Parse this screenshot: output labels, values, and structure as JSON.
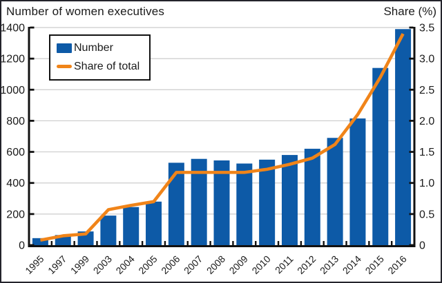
{
  "header": {
    "title": "Number of women executives",
    "right_axis_title": "Share (%)"
  },
  "legend": {
    "items": [
      {
        "label": "Number",
        "kind": "bar"
      },
      {
        "label": "Share of total",
        "kind": "line"
      }
    ]
  },
  "colors": {
    "bar": "#0d5aa7",
    "line": "#f08419",
    "grid": "#cccccc",
    "axis": "#111111",
    "text": "#1a1a1a",
    "frame": "#23232b",
    "background": "#ffffff"
  },
  "chart_data": {
    "type": "bar",
    "subtype": "bar-line-combo",
    "title": "Number of women executives",
    "categories": [
      "1995",
      "1997",
      "1999",
      "2003",
      "2004",
      "2005",
      "2006",
      "2007",
      "2008",
      "2009",
      "2010",
      "2011",
      "2012",
      "2013",
      "2014",
      "2015",
      "2016"
    ],
    "series": [
      {
        "name": "Number",
        "type": "bar",
        "axis": "left",
        "values": [
          45,
          65,
          88,
          190,
          245,
          280,
          530,
          555,
          545,
          525,
          550,
          580,
          620,
          690,
          815,
          1140,
          1390
        ]
      },
      {
        "name": "Share of total",
        "type": "line",
        "axis": "right",
        "values": [
          0.08,
          0.15,
          0.18,
          0.57,
          0.64,
          0.7,
          1.17,
          1.17,
          1.17,
          1.17,
          1.22,
          1.3,
          1.4,
          1.62,
          2.1,
          2.7,
          3.4
        ]
      }
    ],
    "left_axis": {
      "label": "Number of women executives",
      "min": 0,
      "max": 1400,
      "step": 200,
      "tick_labels": [
        "0",
        "200",
        "400",
        "600",
        "800",
        "1000",
        "1200",
        "1400"
      ]
    },
    "right_axis": {
      "label": "Share (%)",
      "min": 0,
      "max": 3.5,
      "step": 0.5,
      "tick_labels": [
        "0",
        "0.5",
        "1.0",
        "1.5",
        "2.0",
        "2.5",
        "3.0",
        "3.5"
      ]
    },
    "grid": true,
    "legend_position": "upper-left-inside",
    "x_tick_label_rotation_deg": -45
  }
}
